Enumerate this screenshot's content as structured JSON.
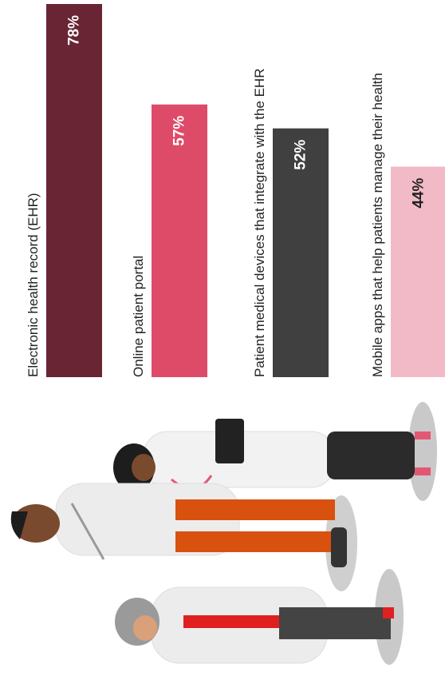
{
  "chart_data": {
    "type": "bar",
    "categories": [
      "Electronic health record (EHR)",
      "Online patient portal",
      "Patient medical devices that integrate with the EHR",
      "Mobile apps that help patients manage their health"
    ],
    "values": [
      78,
      57,
      52,
      44
    ],
    "value_labels": [
      "78%",
      "57%",
      "52%",
      "44%"
    ],
    "colors": [
      "#6a2535",
      "#de4b69",
      "#404040",
      "#f2bac6"
    ]
  }
}
